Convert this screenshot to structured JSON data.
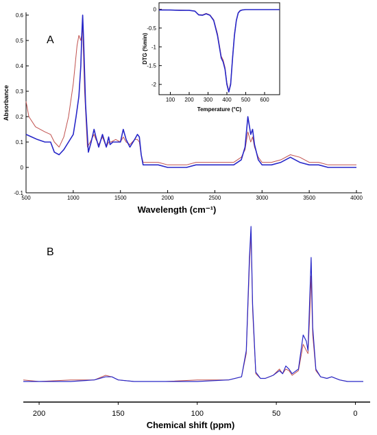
{
  "chart_data": [
    {
      "type": "line",
      "panel_label": "A",
      "xlabel": "Wavelength (cm⁻¹)",
      "ylabel": "Absorbance",
      "xlim": [
        500,
        4000
      ],
      "ylim": [
        -0.1,
        0.6
      ],
      "x_ticks": [
        "500",
        "1000",
        "1500",
        "2000",
        "2500",
        "3000",
        "3500",
        "4000"
      ],
      "y_ticks": [
        "-0.1",
        "0",
        "0.1",
        "0.2",
        "0.3",
        "0.4",
        "0.5",
        "0.6"
      ],
      "grid": false,
      "series": [
        {
          "color": "#2626c8",
          "x": [
            500,
            560,
            620,
            700,
            760,
            800,
            850,
            900,
            950,
            1000,
            1030,
            1060,
            1080,
            1090,
            1100,
            1110,
            1130,
            1160,
            1190,
            1220,
            1240,
            1270,
            1310,
            1350,
            1375,
            1390,
            1420,
            1460,
            1500,
            1530,
            1560,
            1600,
            1650,
            1680,
            1700,
            1720,
            1740,
            1800,
            1900,
            2000,
            2100,
            2200,
            2300,
            2400,
            2500,
            2600,
            2700,
            2780,
            2820,
            2850,
            2880,
            2900,
            2920,
            2960,
            3000,
            3100,
            3200,
            3300,
            3400,
            3500,
            3600,
            3700,
            3800,
            3900,
            4000
          ],
          "y": [
            0.13,
            0.12,
            0.11,
            0.1,
            0.1,
            0.06,
            0.05,
            0.07,
            0.1,
            0.13,
            0.2,
            0.28,
            0.4,
            0.52,
            0.6,
            0.5,
            0.25,
            0.06,
            0.1,
            0.15,
            0.12,
            0.08,
            0.13,
            0.08,
            0.12,
            0.09,
            0.1,
            0.1,
            0.1,
            0.15,
            0.11,
            0.08,
            0.11,
            0.13,
            0.12,
            0.05,
            0.01,
            0.01,
            0.01,
            0.0,
            0.0,
            0.0,
            0.01,
            0.01,
            0.01,
            0.01,
            0.01,
            0.03,
            0.08,
            0.2,
            0.13,
            0.15,
            0.09,
            0.03,
            0.01,
            0.01,
            0.02,
            0.04,
            0.02,
            0.01,
            0.01,
            0.0,
            0.0,
            0.0,
            0.0
          ]
        },
        {
          "color": "#c0504d",
          "x": [
            500,
            530,
            600,
            700,
            760,
            800,
            850,
            900,
            950,
            1000,
            1040,
            1060,
            1080,
            1100,
            1120,
            1150,
            1180,
            1220,
            1240,
            1270,
            1310,
            1350,
            1375,
            1400,
            1450,
            1500,
            1530,
            1560,
            1600,
            1650,
            1680,
            1700,
            1720,
            1740,
            1800,
            1900,
            2000,
            2100,
            2200,
            2300,
            2400,
            2500,
            2600,
            2700,
            2780,
            2820,
            2850,
            2880,
            2900,
            2920,
            2960,
            3000,
            3100,
            3200,
            3300,
            3400,
            3500,
            3600,
            3700,
            3800,
            3900,
            4000
          ],
          "y": [
            0.26,
            0.2,
            0.16,
            0.14,
            0.13,
            0.1,
            0.08,
            0.12,
            0.2,
            0.33,
            0.48,
            0.52,
            0.5,
            0.55,
            0.3,
            0.08,
            0.1,
            0.13,
            0.11,
            0.09,
            0.12,
            0.08,
            0.1,
            0.1,
            0.11,
            0.1,
            0.12,
            0.1,
            0.09,
            0.11,
            0.11,
            0.1,
            0.05,
            0.02,
            0.02,
            0.02,
            0.01,
            0.01,
            0.01,
            0.02,
            0.02,
            0.02,
            0.02,
            0.02,
            0.04,
            0.07,
            0.14,
            0.1,
            0.12,
            0.08,
            0.04,
            0.02,
            0.02,
            0.03,
            0.05,
            0.04,
            0.02,
            0.02,
            0.01,
            0.01,
            0.01,
            0.01
          ]
        }
      ]
    },
    {
      "type": "line",
      "panel_label": "",
      "xlabel": "Temperature (°C)",
      "ylabel": "DTG (%min)",
      "xlim": [
        40,
        680
      ],
      "ylim": [
        -2.2,
        0.1
      ],
      "x_ticks": [
        "100",
        "200",
        "300",
        "400",
        "500",
        "600"
      ],
      "y_ticks": [
        "0",
        "-0.5",
        "-1",
        "-1.5",
        "-2"
      ],
      "grid": false,
      "series": [
        {
          "color": "#2626c8",
          "x": [
            40,
            100,
            150,
            200,
            230,
            250,
            270,
            290,
            310,
            330,
            350,
            370,
            380,
            390,
            400,
            410,
            420,
            430,
            440,
            450,
            460,
            470,
            480,
            500,
            550,
            600,
            680
          ],
          "y": [
            -0.02,
            -0.02,
            -0.03,
            -0.03,
            -0.05,
            -0.15,
            -0.16,
            -0.12,
            -0.16,
            -0.3,
            -0.7,
            -1.3,
            -1.4,
            -1.6,
            -2.0,
            -2.2,
            -2.0,
            -1.3,
            -0.7,
            -0.3,
            -0.1,
            -0.04,
            -0.02,
            -0.01,
            -0.01,
            -0.01,
            -0.01
          ]
        },
        {
          "color": "#c0504d",
          "x": [
            40,
            100,
            150,
            200,
            230,
            250,
            270,
            290,
            310,
            330,
            350,
            370,
            380,
            390,
            400,
            410,
            420,
            430,
            440,
            450,
            460,
            470,
            480,
            500,
            550,
            600,
            680
          ],
          "y": [
            -0.01,
            -0.02,
            -0.02,
            -0.03,
            -0.05,
            -0.14,
            -0.15,
            -0.11,
            -0.15,
            -0.28,
            -0.65,
            -1.25,
            -1.35,
            -1.55,
            -1.95,
            -2.18,
            -1.95,
            -1.25,
            -0.65,
            -0.28,
            -0.09,
            -0.03,
            -0.02,
            -0.01,
            -0.01,
            -0.01,
            -0.01
          ]
        }
      ]
    },
    {
      "type": "line",
      "panel_label": "B",
      "xlabel": "Chemical shift (ppm)",
      "ylabel": "",
      "xlim": [
        210,
        -5
      ],
      "ylim": [
        0,
        1
      ],
      "x_ticks": [
        "200",
        "150",
        "100",
        "50",
        "0"
      ],
      "grid": false,
      "series": [
        {
          "color": "#2626c8",
          "x": [
            210,
            200,
            180,
            165,
            158,
            154,
            150,
            140,
            120,
            100,
            80,
            72,
            69,
            67,
            66,
            65,
            63,
            60,
            57,
            52,
            48,
            46,
            44,
            42,
            40,
            36,
            33,
            31,
            30,
            29,
            28,
            27,
            25,
            22,
            18,
            15,
            10,
            5,
            0,
            -5
          ],
          "y": [
            0.0,
            0.0,
            0.0,
            0.01,
            0.03,
            0.03,
            0.01,
            0.0,
            0.0,
            0.0,
            0.01,
            0.03,
            0.2,
            0.8,
            1.0,
            0.5,
            0.06,
            0.02,
            0.02,
            0.04,
            0.07,
            0.05,
            0.1,
            0.08,
            0.05,
            0.08,
            0.3,
            0.26,
            0.2,
            0.5,
            0.8,
            0.35,
            0.08,
            0.03,
            0.02,
            0.03,
            0.01,
            0.0,
            0.0,
            0.0
          ]
        },
        {
          "color": "#c0504d",
          "x": [
            210,
            200,
            180,
            165,
            158,
            154,
            150,
            140,
            120,
            100,
            80,
            72,
            69,
            67,
            66,
            65,
            63,
            60,
            57,
            52,
            48,
            46,
            44,
            42,
            40,
            36,
            33,
            31,
            30,
            29,
            28,
            27,
            25,
            22,
            18,
            15,
            10,
            5,
            0,
            -5
          ],
          "y": [
            0.01,
            0.0,
            0.01,
            0.01,
            0.04,
            0.03,
            0.01,
            0.0,
            0.0,
            0.01,
            0.01,
            0.03,
            0.18,
            0.75,
            0.96,
            0.46,
            0.05,
            0.02,
            0.02,
            0.04,
            0.08,
            0.05,
            0.08,
            0.07,
            0.04,
            0.07,
            0.24,
            0.2,
            0.18,
            0.4,
            0.68,
            0.3,
            0.07,
            0.03,
            0.02,
            0.03,
            0.01,
            0.0,
            0.0,
            0.0
          ]
        }
      ]
    }
  ]
}
